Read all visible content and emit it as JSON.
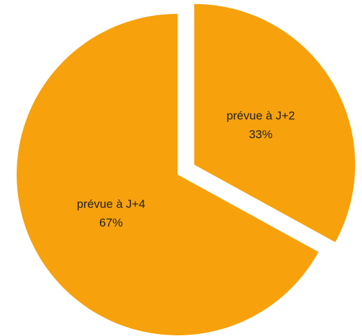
{
  "chart_data": {
    "type": "pie",
    "categories": [
      "prévue à J+2",
      "prévue à J+4"
    ],
    "values": [
      33,
      67
    ],
    "value_labels": [
      "33%",
      "67%"
    ],
    "color": "#f7a10c"
  }
}
